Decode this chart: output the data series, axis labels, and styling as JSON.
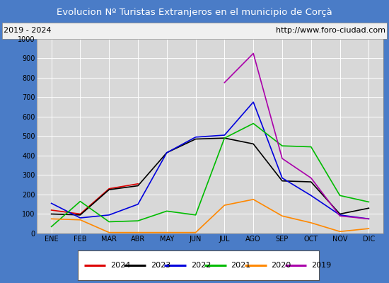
{
  "title": "Evolucion Nº Turistas Extranjeros en el municipio de Corçà",
  "subtitle_left": "2019 - 2024",
  "subtitle_right": "http://www.foro-ciudad.com",
  "title_bg_color": "#4a7cc7",
  "title_text_color": "#ffffff",
  "subtitle_bg_color": "#e8e8e8",
  "subtitle_text_color": "#000000",
  "plot_bg_color": "#d8d8d8",
  "grid_color": "#ffffff",
  "months": [
    "ENE",
    "FEB",
    "MAR",
    "ABR",
    "MAY",
    "JUN",
    "JUL",
    "AGO",
    "SEP",
    "OCT",
    "NOV",
    "DIC"
  ],
  "ylim": [
    0,
    1000
  ],
  "yticks": [
    0,
    100,
    200,
    300,
    400,
    500,
    600,
    700,
    800,
    900,
    1000
  ],
  "series": {
    "2024": {
      "color": "#dd0000",
      "data": [
        120,
        100,
        230,
        255,
        null,
        null,
        null,
        null,
        null,
        null,
        null,
        null
      ]
    },
    "2023": {
      "color": "#000000",
      "data": [
        100,
        95,
        225,
        245,
        415,
        485,
        490,
        460,
        270,
        265,
        100,
        130
      ]
    },
    "2022": {
      "color": "#0000dd",
      "data": [
        155,
        80,
        95,
        150,
        415,
        495,
        505,
        675,
        285,
        195,
        95,
        75
      ]
    },
    "2021": {
      "color": "#00bb00",
      "data": [
        35,
        165,
        60,
        65,
        115,
        95,
        490,
        565,
        450,
        445,
        195,
        162
      ]
    },
    "2020": {
      "color": "#ff8800",
      "data": [
        75,
        70,
        5,
        5,
        5,
        5,
        145,
        175,
        90,
        55,
        10,
        25
      ]
    },
    "2019": {
      "color": "#aa00aa",
      "data": [
        null,
        null,
        null,
        null,
        null,
        null,
        775,
        925,
        385,
        285,
        90,
        75
      ]
    }
  },
  "legend_order": [
    "2024",
    "2023",
    "2022",
    "2021",
    "2020",
    "2019"
  ],
  "outer_border_color": "#4a7cc7",
  "fig_width": 5.5,
  "fig_height": 4.0,
  "dpi": 100
}
